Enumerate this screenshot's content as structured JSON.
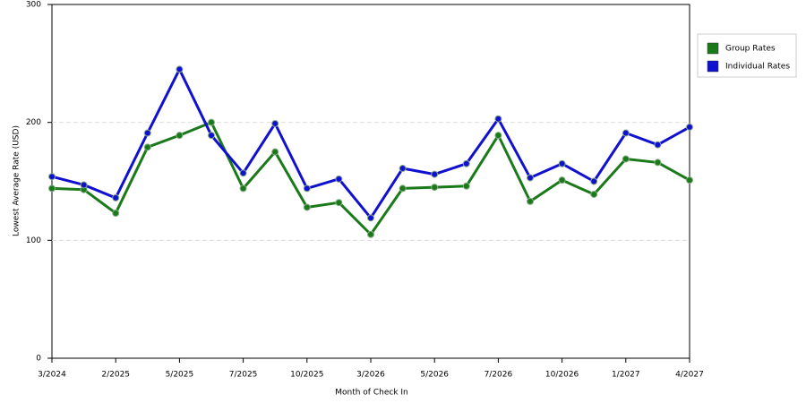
{
  "chart_data": {
    "type": "line",
    "x_label": "Month of Check In",
    "y_label": "Lowest Average Rate (USD)",
    "categories": [
      "3/2024",
      null,
      "2/2025",
      null,
      "5/2025",
      null,
      "7/2025",
      null,
      "10/2025",
      null,
      "3/2026",
      null,
      "5/2026",
      null,
      "7/2026",
      null,
      "10/2026",
      null,
      "1/2027",
      null,
      "4/2027"
    ],
    "series": [
      {
        "name": "Group Rates",
        "color": "#1a7a1a",
        "values": [
          144,
          143,
          123,
          179,
          189,
          200,
          144,
          175,
          128,
          132,
          105,
          144,
          145,
          146,
          189,
          133,
          151,
          139,
          169,
          166,
          151
        ]
      },
      {
        "name": "Individual Rates",
        "color": "#1010d0",
        "values": [
          154,
          147,
          136,
          191,
          245,
          189,
          157,
          199,
          144,
          152,
          119,
          161,
          156,
          165,
          203,
          153,
          165,
          150,
          191,
          181,
          196
        ]
      }
    ],
    "ylim": [
      0,
      300
    ],
    "yticks": [
      0,
      100,
      200,
      300
    ],
    "grid": true,
    "legend": "right"
  }
}
